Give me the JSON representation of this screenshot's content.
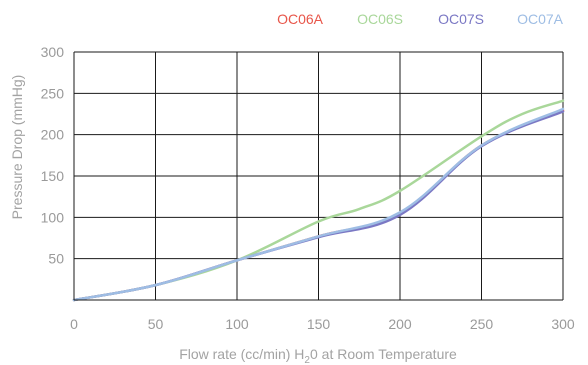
{
  "chart_data": {
    "type": "line",
    "xlabel": "Flow rate (cc/min) H",
    "xlabel_sub": "2",
    "xlabel_suffix": "0 at Room Temperature",
    "ylabel": "Pressure Drop (mmHg)",
    "xlim": [
      0,
      300
    ],
    "ylim": [
      0,
      300
    ],
    "x_ticks": [
      0,
      50,
      100,
      150,
      200,
      250,
      300
    ],
    "y_ticks": [
      50,
      100,
      150,
      200,
      250,
      300
    ],
    "x_tick_labels": [
      "0",
      "50",
      "100",
      "150",
      "200",
      "250",
      "300"
    ],
    "y_tick_labels": [
      "50",
      "100",
      "150",
      "200",
      "250",
      "300"
    ],
    "grid": true,
    "legend_position": "top-right",
    "series": [
      {
        "name": "OC06A",
        "color": "#e8564a",
        "x": [
          0,
          50,
          100,
          150,
          200,
          250,
          300
        ],
        "y": [
          0,
          18,
          48,
          77,
          105,
          187,
          229
        ]
      },
      {
        "name": "OC06S",
        "color": "#a9d79a",
        "x": [
          0,
          50,
          100,
          150,
          175,
          200,
          250,
          275,
          300
        ],
        "y": [
          0,
          18,
          48,
          95,
          110,
          132,
          198,
          225,
          241
        ]
      },
      {
        "name": "OC07S",
        "color": "#7b78c4",
        "x": [
          0,
          50,
          100,
          150,
          200,
          250,
          300
        ],
        "y": [
          0,
          18,
          48,
          76,
          103,
          186,
          228
        ]
      },
      {
        "name": "OC07A",
        "color": "#9ebde4",
        "x": [
          0,
          50,
          100,
          150,
          200,
          250,
          300
        ],
        "y": [
          0,
          18,
          48,
          77,
          106,
          187,
          231
        ]
      }
    ]
  }
}
